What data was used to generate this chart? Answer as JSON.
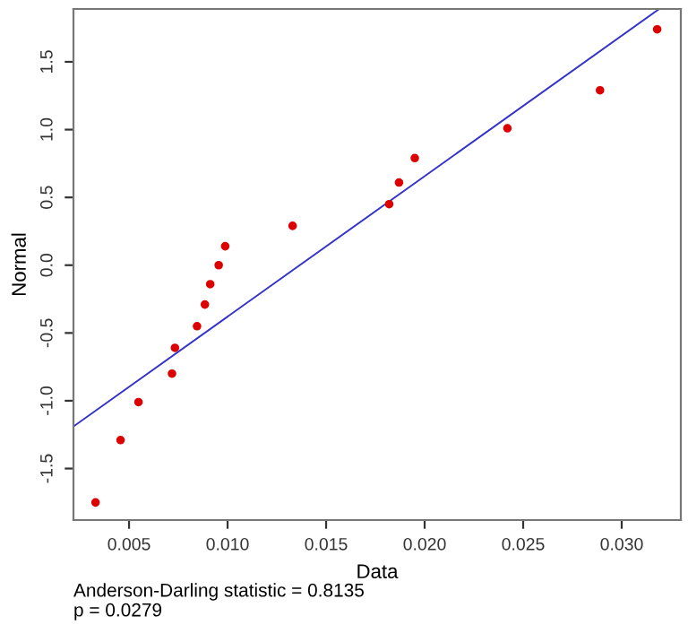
{
  "chart_data": {
    "type": "scatter",
    "xlabel": "Data",
    "ylabel": "Normal",
    "series": [
      {
        "color": "#dd0000",
        "marker": "circle",
        "x": [
          0.0033,
          0.00457,
          0.00548,
          0.00718,
          0.00733,
          0.00845,
          0.00885,
          0.00912,
          0.00955,
          0.00988,
          0.0133,
          0.0182,
          0.0187,
          0.0195,
          0.0242,
          0.0289,
          0.0318
        ],
        "values": [
          -1.75,
          -1.29,
          -1.01,
          -0.8,
          -0.61,
          -0.45,
          -0.29,
          -0.14,
          0.0,
          0.14,
          0.29,
          0.45,
          0.61,
          0.79,
          1.01,
          1.29,
          1.74
        ]
      },
      {
        "type": "line",
        "color": "#3333cc",
        "marker": "none",
        "x": [
          0.00218,
          0.0319
        ],
        "values": [
          -1.19,
          1.89
        ]
      }
    ],
    "xlim": [
      0.00218,
      0.033
    ],
    "ylim": [
      -1.88,
      1.89
    ],
    "xticks": [
      {
        "value": 0.005,
        "label": "0.005"
      },
      {
        "value": 0.01,
        "label": "0.010"
      },
      {
        "value": 0.015,
        "label": "0.015"
      },
      {
        "value": 0.02,
        "label": "0.020"
      },
      {
        "value": 0.025,
        "label": "0.025"
      },
      {
        "value": 0.03,
        "label": "0.030"
      }
    ],
    "yticks": [
      {
        "value": -1.5,
        "label": "-1.5"
      },
      {
        "value": -1.0,
        "label": "-1.0"
      },
      {
        "value": -0.5,
        "label": "-0.5"
      },
      {
        "value": 0.0,
        "label": "0.0"
      },
      {
        "value": 0.5,
        "label": "0.5"
      },
      {
        "value": 1.0,
        "label": "1.0"
      },
      {
        "value": 1.5,
        "label": "1.5"
      }
    ],
    "grid": false,
    "legend": false,
    "annotations": [
      "Anderson-Darling statistic = 0.8135",
      "p = 0.0279"
    ]
  }
}
